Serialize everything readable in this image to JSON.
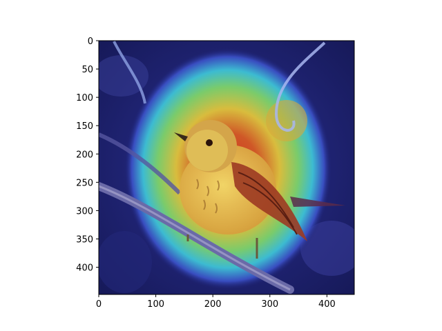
{
  "figure": {
    "image_description": "Grad-CAM style heatmap overlay on a photo of a small yellow-breasted warbler perched on a branch; jet colormap (red hotspot on the bird's head/back, yellow-green halo, dark blue background)",
    "image_extent": {
      "x": [
        0,
        448
      ],
      "y": [
        0,
        448
      ]
    },
    "x_axis": {
      "range": [
        0,
        448
      ],
      "ticks": [
        0,
        100,
        200,
        300,
        400
      ],
      "tick_labels": [
        "0",
        "100",
        "200",
        "300",
        "400"
      ]
    },
    "y_axis": {
      "range": [
        0,
        448
      ],
      "inverted": true,
      "ticks": [
        0,
        50,
        100,
        150,
        200,
        250,
        300,
        350,
        400
      ],
      "tick_labels": [
        "0",
        "50",
        "100",
        "150",
        "200",
        "250",
        "300",
        "350",
        "400"
      ]
    },
    "colors": {
      "background_dark": "#1a1f6e",
      "heat_red": "#d23a1e",
      "heat_yellow": "#e8d23a",
      "heat_green": "#5fd07a",
      "heat_cyan": "#3fc8d8",
      "bird_body": "#e6c45a",
      "bird_wing": "#9c3a22",
      "branch": "#6a6aa8"
    }
  }
}
